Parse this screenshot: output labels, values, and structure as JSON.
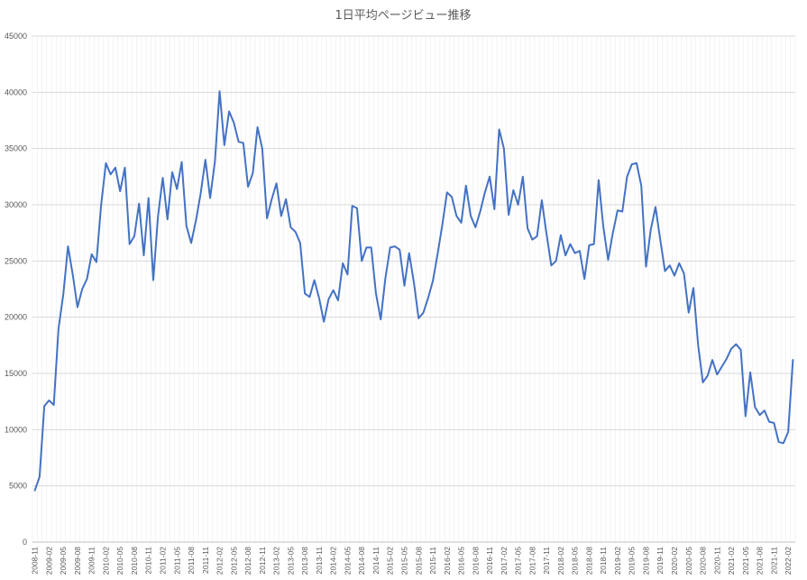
{
  "chart_data": {
    "type": "line",
    "title": "1日平均ページビュー推移",
    "xlabel": "",
    "ylabel": "",
    "ylim": [
      0,
      45000
    ],
    "yticks": [
      0,
      5000,
      10000,
      15000,
      20000,
      25000,
      30000,
      35000,
      40000,
      45000
    ],
    "grid": true,
    "legend": "none",
    "line_color": "#4472c4",
    "x_start": "2008-11",
    "x_end": "2022-02",
    "x_tick_labels": [
      "2008-11",
      "2009-02",
      "2009-05",
      "2009-08",
      "2009-11",
      "2010-02",
      "2010-05",
      "2010-08",
      "2010-11",
      "2011-02",
      "2011-05",
      "2011-08",
      "2011-11",
      "2012-02",
      "2012-05",
      "2012-08",
      "2012-11",
      "2013-02",
      "2013-05",
      "2013-08",
      "2013-11",
      "2014-02",
      "2014-05",
      "2014-08",
      "2014-11",
      "2015-02",
      "2015-05",
      "2015-08",
      "2015-11",
      "2016-02",
      "2016-05",
      "2016-08",
      "2016-11",
      "2017-02",
      "2017-05",
      "2017-08",
      "2017-11",
      "2018-02",
      "2018-05",
      "2018-08",
      "2018-11",
      "2019-02",
      "2019-05",
      "2019-08",
      "2019-11",
      "2020-02",
      "2020-05",
      "2020-08",
      "2020-11",
      "2021-02",
      "2021-05",
      "2021-08",
      "2021-11",
      "2022-02"
    ],
    "series": [
      {
        "values": [
          4600,
          5800,
          12100,
          12600,
          12200,
          19000,
          22000,
          26300,
          23800,
          20900,
          22500,
          23400,
          25600,
          24900,
          30000,
          33700,
          32700,
          33300,
          31200,
          33300,
          26500,
          27200,
          30100,
          25500,
          30600,
          23300,
          29000,
          32400,
          28700,
          32900,
          31400,
          33800,
          28100,
          26600,
          28600,
          31000,
          34000,
          30600,
          33800,
          40100,
          35300,
          38300,
          37300,
          35600,
          35500,
          31600,
          32800,
          36900,
          35000,
          28800,
          30500,
          31900,
          29000,
          30500,
          28000,
          27600,
          26600,
          22100,
          21800,
          23300,
          21700,
          19600,
          21600,
          22400,
          21500,
          24800,
          23800,
          29900,
          29700,
          25000,
          26200,
          26200,
          22100,
          19800,
          23500,
          26200,
          26300,
          26000,
          22800,
          25700,
          23100,
          19900,
          20400,
          21700,
          23200,
          25600,
          28200,
          31100,
          30700,
          29000,
          28400,
          31700,
          29000,
          28000,
          29400,
          31100,
          32500,
          29600,
          36700,
          35000,
          29100,
          31300,
          30000,
          32500,
          27900,
          26900,
          27200,
          30400,
          27400,
          24600,
          25000,
          27300,
          25500,
          26500,
          25700,
          25900,
          23400,
          26400,
          26500,
          32200,
          28000,
          25100,
          27500,
          29500,
          29400,
          32500,
          33600,
          33700,
          31700,
          24500,
          27800,
          29800,
          26900,
          24100,
          24600,
          23700,
          24800,
          23900,
          20400,
          22600,
          17500,
          14200,
          14800,
          16200,
          14900,
          15600,
          16300,
          17200,
          17600,
          17100,
          11200,
          15100,
          12000,
          11300,
          11700,
          10700,
          10600,
          8900,
          8800,
          9800,
          16200
        ]
      }
    ]
  }
}
